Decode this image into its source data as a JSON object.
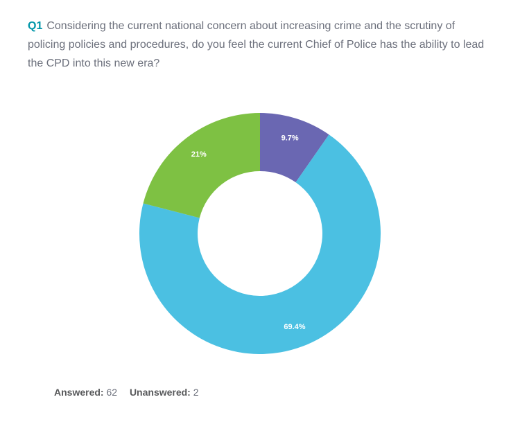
{
  "question": {
    "id_label": "Q1",
    "text": "Considering the current national concern about increasing crime and the scrutiny of policing policies and procedures, do you feel the current Chief of Police has the ability to lead the CPD into this new era?"
  },
  "chart": {
    "type": "donut",
    "background_color": "#ffffff",
    "size": 360,
    "outer_radius": 174,
    "inner_radius": 90,
    "start_angle_deg": 0,
    "slices": [
      {
        "label": "9.7%",
        "value": 9.7,
        "color": "#6a67b2"
      },
      {
        "label": "69.4%",
        "value": 69.4,
        "color": "#4bc0e2"
      },
      {
        "label": "21%",
        "value": 21.0,
        "color": "#7ec143"
      }
    ],
    "label_color": "#ffffff",
    "label_fontsize": 11,
    "label_radius": 144,
    "show_label_min_value": 0
  },
  "stats": {
    "answered_label": "Answered:",
    "answered_value": "62",
    "unanswered_label": "Unanswered:",
    "unanswered_value": "2"
  }
}
